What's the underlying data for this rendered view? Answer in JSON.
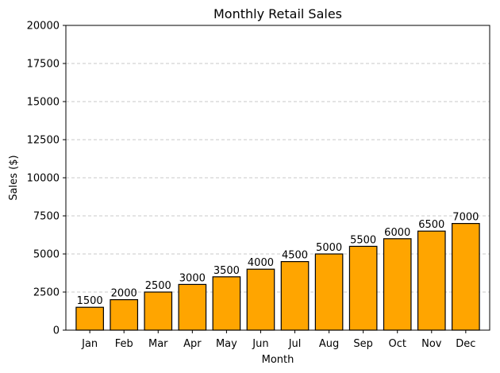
{
  "chart_data": {
    "type": "bar",
    "title": "Monthly Retail Sales",
    "xlabel": "Month",
    "ylabel": "Sales ($)",
    "categories": [
      "Jan",
      "Feb",
      "Mar",
      "Apr",
      "May",
      "Jun",
      "Jul",
      "Aug",
      "Sep",
      "Oct",
      "Nov",
      "Dec"
    ],
    "values": [
      1500,
      2000,
      2500,
      3000,
      3500,
      4000,
      4500,
      5000,
      5500,
      6000,
      6500,
      7000
    ],
    "data_labels": [
      "1500",
      "2000",
      "2500",
      "3000",
      "3500",
      "4000",
      "4500",
      "5000",
      "5500",
      "6000",
      "6500",
      "7000"
    ],
    "ylim": [
      0,
      20000
    ],
    "yticks": [
      0,
      2500,
      5000,
      7500,
      10000,
      12500,
      15000,
      17500,
      20000
    ],
    "ytick_labels": [
      "0",
      "2500",
      "5000",
      "7500",
      "10000",
      "12500",
      "15000",
      "17500",
      "20000"
    ],
    "grid": "y-dashed",
    "bar_color": "#FFA500",
    "edge_color": "#000000",
    "grid_color": "#c8c8c8"
  }
}
